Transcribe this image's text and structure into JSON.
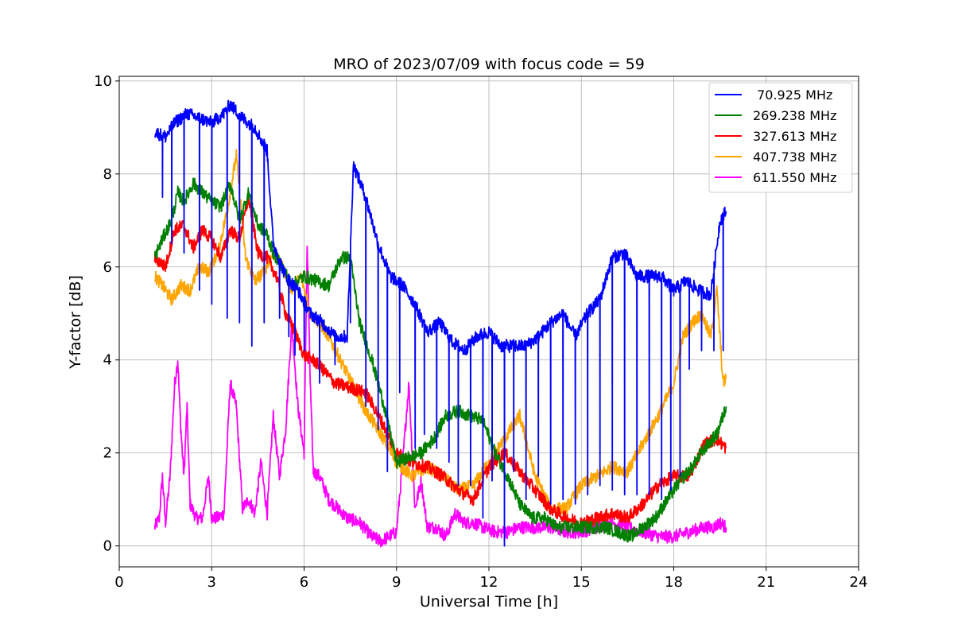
{
  "chart_data": {
    "type": "line",
    "title": "MRO of 2023/07/09 with focus code = 59",
    "xlabel": "Universal Time [h]",
    "ylabel": "Y-factor [dB]",
    "xlim": [
      0,
      24
    ],
    "ylim": [
      -0.45,
      10.1
    ],
    "xticks": [
      "0",
      "3",
      "6",
      "9",
      "12",
      "15",
      "18",
      "21",
      "24"
    ],
    "yticks": [
      "0",
      "2",
      "4",
      "6",
      "8",
      "10"
    ],
    "grid": true,
    "legend_position": "top-right",
    "series": [
      {
        "name": " 70.925 MHz",
        "color": "#0000ff",
        "x": [
          1.15,
          1.5,
          1.8,
          2.2,
          2.6,
          3.0,
          3.4,
          3.6,
          4.0,
          4.4,
          4.8,
          5.0,
          5.4,
          5.8,
          6.2,
          6.6,
          7.0,
          7.4,
          7.6,
          8.0,
          8.4,
          8.8,
          9.2,
          9.6,
          10.0,
          10.4,
          10.8,
          11.2,
          11.6,
          12.0,
          12.4,
          12.8,
          13.2,
          13.6,
          14.0,
          14.4,
          14.8,
          15.2,
          15.6,
          16.0,
          16.4,
          16.8,
          17.2,
          17.6,
          18.0,
          18.4,
          18.8,
          19.2,
          19.5,
          19.7
        ],
        "y": [
          8.9,
          8.8,
          9.1,
          9.3,
          9.2,
          9.1,
          9.3,
          9.5,
          9.2,
          9.0,
          8.5,
          6.5,
          5.8,
          5.5,
          5.0,
          4.8,
          4.5,
          4.5,
          8.2,
          7.5,
          6.5,
          5.8,
          5.6,
          5.2,
          4.6,
          4.8,
          4.4,
          4.2,
          4.5,
          4.6,
          4.3,
          4.3,
          4.3,
          4.5,
          4.8,
          5.0,
          4.5,
          5.0,
          5.3,
          6.2,
          6.3,
          5.8,
          5.8,
          5.8,
          5.5,
          5.7,
          5.5,
          5.4,
          7.0,
          7.2
        ],
        "drops": [
          [
            1.4,
            7.5
          ],
          [
            1.7,
            6.5
          ],
          [
            2.1,
            6.3
          ],
          [
            2.6,
            5.5
          ],
          [
            3.0,
            5.2
          ],
          [
            3.5,
            4.9
          ],
          [
            3.9,
            4.8
          ],
          [
            4.3,
            4.3
          ],
          [
            4.7,
            4.8
          ],
          [
            5.2,
            4.9
          ],
          [
            5.5,
            4.5
          ],
          [
            5.7,
            4.1
          ],
          [
            6.0,
            4.2
          ],
          [
            6.5,
            3.5
          ],
          [
            7.0,
            3.9
          ],
          [
            7.5,
            4.8
          ],
          [
            8.0,
            3.0
          ],
          [
            8.4,
            2.5
          ],
          [
            8.7,
            1.6
          ],
          [
            9.1,
            3.3
          ],
          [
            9.6,
            2.1
          ],
          [
            9.9,
            2.4
          ],
          [
            10.3,
            2.1
          ],
          [
            10.7,
            1.8
          ],
          [
            11.0,
            1.3
          ],
          [
            11.4,
            1.3
          ],
          [
            11.8,
            0.6
          ],
          [
            12.1,
            1.4
          ],
          [
            12.5,
            0.0
          ],
          [
            12.8,
            1.6
          ],
          [
            13.2,
            1.0
          ],
          [
            13.6,
            1.5
          ],
          [
            14.0,
            0.9
          ],
          [
            14.4,
            1.0
          ],
          [
            14.8,
            0.9
          ],
          [
            15.2,
            1.1
          ],
          [
            15.6,
            1.3
          ],
          [
            16.0,
            1.2
          ],
          [
            16.4,
            1.1
          ],
          [
            16.8,
            1.1
          ],
          [
            17.2,
            1.1
          ],
          [
            17.6,
            1.0
          ],
          [
            17.9,
            1.2
          ],
          [
            18.2,
            1.5
          ],
          [
            18.5,
            3.8
          ],
          [
            18.9,
            4.2
          ],
          [
            19.3,
            4.2
          ],
          [
            19.6,
            4.2
          ]
        ]
      },
      {
        "name": "269.238 MHz",
        "color": "#008000",
        "x": [
          1.15,
          1.4,
          1.7,
          1.9,
          2.1,
          2.4,
          2.7,
          3.0,
          3.3,
          3.6,
          3.9,
          4.2,
          4.5,
          4.8,
          5.0,
          5.3,
          5.6,
          6.0,
          6.4,
          6.8,
          7.2,
          7.5,
          7.8,
          8.2,
          8.6,
          9.0,
          9.4,
          9.8,
          10.2,
          10.6,
          11.0,
          11.4,
          11.8,
          12.2,
          12.6,
          13.0,
          13.4,
          13.8,
          14.2,
          14.6,
          15.0,
          15.4,
          15.8,
          16.2,
          16.6,
          17.0,
          17.4,
          17.8,
          18.2,
          18.6,
          19.0,
          19.4,
          19.7
        ],
        "y": [
          6.2,
          6.6,
          7.0,
          7.6,
          7.4,
          7.8,
          7.6,
          7.4,
          7.3,
          7.8,
          7.0,
          7.6,
          6.9,
          6.7,
          6.3,
          6.0,
          5.6,
          5.8,
          5.7,
          5.6,
          6.2,
          6.2,
          4.8,
          4.0,
          3.0,
          1.8,
          1.9,
          2.0,
          2.3,
          2.8,
          2.9,
          2.8,
          2.7,
          2.0,
          1.5,
          0.9,
          0.6,
          0.6,
          0.4,
          0.4,
          0.4,
          0.4,
          0.4,
          0.3,
          0.2,
          0.4,
          0.6,
          1.0,
          1.4,
          1.7,
          2.1,
          2.4,
          3.0
        ]
      },
      {
        "name": "327.613 MHz",
        "color": "#ff0000",
        "x": [
          1.15,
          1.5,
          1.8,
          2.1,
          2.4,
          2.7,
          3.0,
          3.3,
          3.6,
          3.9,
          4.2,
          4.5,
          4.8,
          5.1,
          5.4,
          5.7,
          6.0,
          6.3,
          6.6,
          7.0,
          7.5,
          8.0,
          8.5,
          9.0,
          9.5,
          10.0,
          10.5,
          11.0,
          11.5,
          12.0,
          12.5,
          13.0,
          13.5,
          14.0,
          14.5,
          15.0,
          15.5,
          16.0,
          16.5,
          17.0,
          17.5,
          18.0,
          18.5,
          19.0,
          19.4,
          19.7
        ],
        "y": [
          6.2,
          6.0,
          6.8,
          6.9,
          6.4,
          6.8,
          6.6,
          6.2,
          6.8,
          6.6,
          7.5,
          6.3,
          6.2,
          5.8,
          5.0,
          4.6,
          4.1,
          4.0,
          3.8,
          3.5,
          3.4,
          3.3,
          2.7,
          2.0,
          1.8,
          1.7,
          1.5,
          1.2,
          1.0,
          1.7,
          2.0,
          1.6,
          1.2,
          0.8,
          0.6,
          0.5,
          0.6,
          0.7,
          0.6,
          0.9,
          1.3,
          1.5,
          1.5,
          2.2,
          2.3,
          2.1
        ]
      },
      {
        "name": "407.738 MHz",
        "color": "#ffa500",
        "x": [
          1.15,
          1.4,
          1.7,
          2.0,
          2.3,
          2.6,
          2.9,
          3.2,
          3.5,
          3.8,
          4.1,
          4.4,
          4.7,
          5.0,
          5.3,
          5.6,
          5.9,
          6.2,
          6.5,
          6.8,
          7.1,
          7.4,
          7.7,
          8.0,
          8.5,
          9.0,
          9.5,
          10.0,
          10.5,
          11.0,
          11.5,
          12.0,
          12.5,
          13.0,
          13.5,
          14.0,
          14.5,
          15.0,
          15.5,
          16.0,
          16.5,
          17.0,
          17.5,
          18.0,
          18.3,
          18.6,
          18.9,
          19.2,
          19.4,
          19.6,
          19.7
        ],
        "y": [
          5.8,
          5.6,
          5.3,
          5.6,
          5.5,
          6.0,
          5.9,
          6.3,
          7.2,
          8.4,
          6.2,
          5.7,
          5.9,
          6.3,
          6.0,
          5.5,
          5.8,
          5.0,
          4.8,
          4.5,
          4.1,
          3.7,
          3.3,
          2.9,
          2.4,
          1.8,
          1.5,
          1.7,
          1.5,
          1.2,
          1.3,
          1.8,
          2.3,
          2.8,
          1.5,
          0.8,
          0.8,
          1.3,
          1.5,
          1.7,
          1.6,
          2.2,
          2.8,
          3.5,
          4.5,
          4.8,
          5.0,
          4.5,
          5.5,
          3.5,
          3.6
        ]
      },
      {
        "name": "611.550 MHz",
        "color": "#ff00ff",
        "x": [
          1.15,
          1.3,
          1.4,
          1.5,
          1.65,
          1.8,
          1.9,
          2.0,
          2.1,
          2.2,
          2.3,
          2.5,
          2.7,
          2.9,
          3.0,
          3.2,
          3.4,
          3.6,
          3.8,
          4.0,
          4.2,
          4.4,
          4.6,
          4.8,
          5.0,
          5.2,
          5.4,
          5.6,
          5.8,
          6.0,
          6.1,
          6.2,
          6.3,
          6.5,
          6.8,
          7.1,
          7.4,
          7.8,
          8.2,
          8.5,
          9.0,
          9.2,
          9.4,
          9.6,
          9.8,
          10.0,
          10.3,
          10.6,
          10.9,
          11.2,
          11.5,
          11.8,
          12.2,
          12.6,
          13.0,
          13.5,
          14.0,
          14.5,
          15.0,
          15.5,
          16.0,
          16.5,
          17.0,
          17.5,
          18.0,
          18.5,
          19.0,
          19.3,
          19.5,
          19.7
        ],
        "y": [
          0.4,
          0.6,
          1.5,
          0.5,
          1.5,
          3.5,
          4.0,
          2.5,
          1.5,
          3.0,
          0.9,
          0.6,
          0.6,
          1.5,
          0.6,
          0.6,
          0.7,
          3.5,
          3.0,
          0.8,
          1.0,
          0.7,
          1.8,
          0.7,
          2.8,
          1.5,
          2.5,
          4.8,
          3.0,
          2.0,
          6.5,
          3.5,
          1.6,
          1.5,
          1.0,
          0.8,
          0.6,
          0.5,
          0.2,
          0.1,
          0.3,
          1.8,
          3.5,
          0.8,
          1.4,
          0.4,
          0.4,
          0.2,
          0.7,
          0.5,
          0.5,
          0.4,
          0.3,
          0.3,
          0.4,
          0.4,
          0.4,
          0.3,
          0.3,
          0.4,
          0.5,
          0.4,
          0.3,
          0.2,
          0.2,
          0.3,
          0.4,
          0.4,
          0.5,
          0.4
        ]
      }
    ]
  }
}
